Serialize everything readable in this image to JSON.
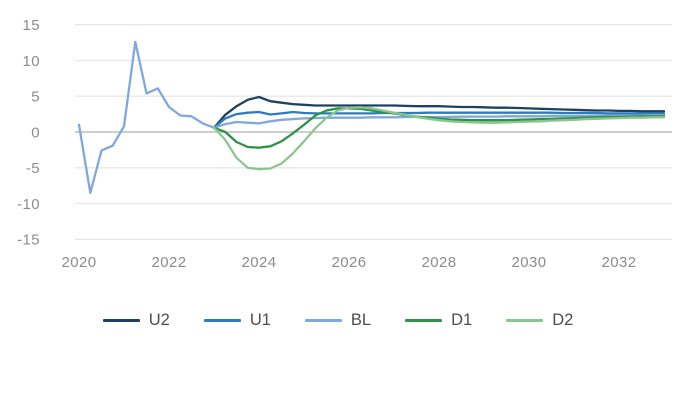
{
  "chart_data": {
    "type": "line",
    "title": "",
    "xlabel": "",
    "ylabel": "",
    "xlim": [
      2020,
      2033.2
    ],
    "ylim": [
      -15,
      15
    ],
    "x_ticks": [
      2020,
      2022,
      2024,
      2026,
      2028,
      2030,
      2032
    ],
    "y_ticks": [
      15,
      10,
      5,
      0,
      -5,
      -10,
      -15
    ],
    "grid": "horizontal",
    "zero_line_emphasized": true,
    "legend_position": "bottom",
    "colors": {
      "grid": "#e7e7e7",
      "zero_line": "#b0b0b0",
      "tick_text": "#8c8c8c",
      "legend_text": "#4d4d4d",
      "background": "#ffffff"
    },
    "series": [
      {
        "name": "U2",
        "color": "#1e4163",
        "x_start": 2023,
        "x_step": 0.25,
        "y": [
          0.6,
          2.4,
          3.6,
          4.5,
          4.9,
          4.3,
          4.1,
          3.9,
          3.8,
          3.7,
          3.7,
          3.7,
          3.7,
          3.7,
          3.7,
          3.7,
          3.7,
          3.65,
          3.6,
          3.6,
          3.6,
          3.55,
          3.5,
          3.5,
          3.45,
          3.4,
          3.4,
          3.35,
          3.3,
          3.25,
          3.2,
          3.15,
          3.1,
          3.05,
          3.0,
          3.0,
          2.95,
          2.95,
          2.9,
          2.9,
          2.9
        ]
      },
      {
        "name": "U1",
        "color": "#2e7bbd",
        "x_start": 2023,
        "x_step": 0.25,
        "y": [
          0.6,
          1.9,
          2.5,
          2.7,
          2.8,
          2.45,
          2.6,
          2.8,
          2.65,
          2.6,
          2.6,
          2.6,
          2.6,
          2.6,
          2.6,
          2.65,
          2.65,
          2.65,
          2.65,
          2.7,
          2.7,
          2.7,
          2.7,
          2.7,
          2.7,
          2.7,
          2.7,
          2.7,
          2.7,
          2.7,
          2.7,
          2.65,
          2.65,
          2.65,
          2.65,
          2.6,
          2.6,
          2.6,
          2.6,
          2.6,
          2.6
        ]
      },
      {
        "name": "BL",
        "color": "#7fa9d9",
        "x_start": 2020,
        "x_step": 0.25,
        "y": [
          1.0,
          -8.5,
          -2.6,
          -1.9,
          0.8,
          12.6,
          5.4,
          6.1,
          3.5,
          2.3,
          2.2,
          1.2,
          0.6,
          1.1,
          1.4,
          1.3,
          1.2,
          1.5,
          1.7,
          1.8,
          1.9,
          1.95,
          2.0,
          2.0,
          2.0,
          2.0,
          2.05,
          2.05,
          2.05,
          2.1,
          2.1,
          2.1,
          2.1,
          2.1,
          2.15,
          2.15,
          2.15,
          2.15,
          2.2,
          2.2,
          2.2,
          2.2,
          2.25,
          2.25,
          2.25,
          2.25,
          2.3,
          2.3,
          2.3,
          2.3,
          2.3,
          2.35,
          2.35
        ]
      },
      {
        "name": "D1",
        "color": "#2e9247",
        "x_start": 2023,
        "x_step": 0.25,
        "y": [
          0.6,
          0.0,
          -1.4,
          -2.1,
          -2.2,
          -2.0,
          -1.3,
          -0.2,
          1.0,
          2.3,
          3.0,
          3.3,
          3.3,
          3.25,
          3.0,
          2.8,
          2.6,
          2.35,
          2.15,
          2.0,
          1.85,
          1.75,
          1.7,
          1.65,
          1.65,
          1.65,
          1.65,
          1.7,
          1.75,
          1.8,
          1.85,
          1.9,
          1.95,
          2.0,
          2.05,
          2.1,
          2.1,
          2.15,
          2.2,
          2.2,
          2.2
        ]
      },
      {
        "name": "D2",
        "color": "#8cc58f",
        "x_start": 2023,
        "x_step": 0.25,
        "y": [
          0.6,
          -1.1,
          -3.6,
          -5.0,
          -5.2,
          -5.1,
          -4.4,
          -3.0,
          -1.3,
          0.5,
          2.0,
          3.0,
          3.4,
          3.45,
          3.3,
          3.0,
          2.7,
          2.4,
          2.1,
          1.85,
          1.65,
          1.5,
          1.4,
          1.35,
          1.3,
          1.3,
          1.35,
          1.4,
          1.45,
          1.5,
          1.6,
          1.65,
          1.7,
          1.8,
          1.85,
          1.9,
          1.95,
          2.0,
          2.0,
          2.05,
          2.05
        ]
      }
    ]
  }
}
